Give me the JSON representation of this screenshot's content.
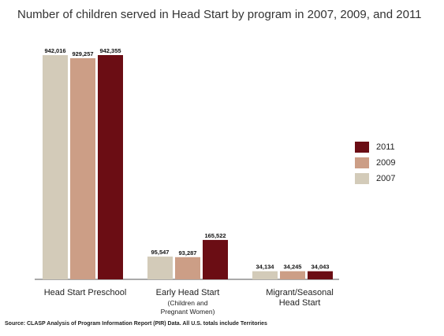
{
  "title": "Number of children served in Head Start by program in 2007, 2009, and 2011",
  "source": "Source: CLASP Analysis of Program Information Report (PIR) Data. All U.S. totals include Territories",
  "colors": {
    "2007": "#d3cbb9",
    "2009": "#cc9e86",
    "2011": "#6b0d14"
  },
  "chart_data": {
    "type": "bar",
    "title": "Number of children served in Head Start by program in 2007, 2009, and 2011",
    "categories": [
      {
        "label": "Head Start Preschool",
        "sub": ""
      },
      {
        "label": "Early Head Start",
        "sub": "(Children and Pregnant Women)"
      },
      {
        "label": "Migrant/Seasonal Head Start",
        "sub": ""
      }
    ],
    "series": [
      {
        "name": "2007",
        "values": [
          942016,
          95547,
          34134
        ],
        "labels": [
          "942,016",
          "95,547",
          "34,134"
        ]
      },
      {
        "name": "2009",
        "values": [
          929257,
          93287,
          34245
        ],
        "labels": [
          "929,257",
          "93,287",
          "34,245"
        ]
      },
      {
        "name": "2011",
        "values": [
          942355,
          165522,
          34043
        ],
        "labels": [
          "942,355",
          "165,522",
          "34,043"
        ]
      }
    ],
    "ylim": [
      0,
      942355
    ],
    "grid": false,
    "legend_position": "right"
  },
  "legend": [
    {
      "name": "2011",
      "color": "#6b0d14"
    },
    {
      "name": "2009",
      "color": "#cc9e86"
    },
    {
      "name": "2007",
      "color": "#d3cbb9"
    }
  ]
}
